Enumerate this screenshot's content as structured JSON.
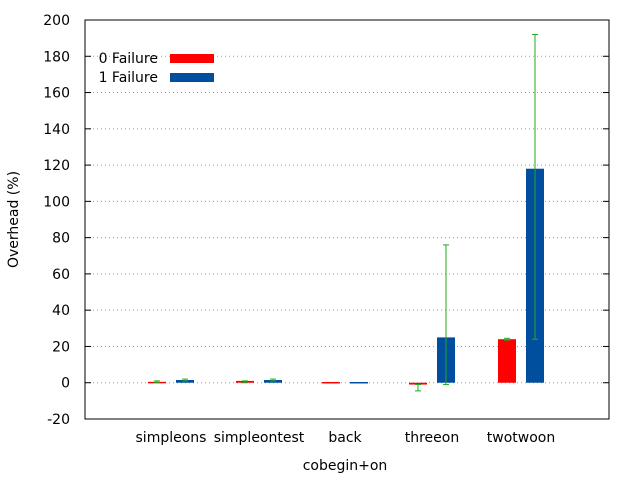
{
  "chart_data": {
    "type": "bar",
    "title": "",
    "xlabel": "cobegin+on",
    "ylabel": "Overhead (%)",
    "ylim": [
      -20,
      200
    ],
    "yticks": [
      -20,
      0,
      20,
      40,
      60,
      80,
      100,
      120,
      140,
      160,
      180,
      200
    ],
    "grid": true,
    "legend_position": "top-left",
    "error_bar_color": "#22aa22",
    "categories": [
      "simpleons",
      "simpleontest",
      "back",
      "threeon",
      "twotwoon"
    ],
    "series": [
      {
        "name": "0 Failure",
        "color": "#ff0000",
        "values": [
          0.5,
          1,
          -0.5,
          -1,
          24
        ],
        "err_low": [
          0,
          0,
          -0.5,
          -4.5,
          23.5
        ],
        "err_high": [
          1,
          1,
          -0.5,
          -1,
          24.5
        ]
      },
      {
        "name": "1 Failure",
        "color": "#004f9e",
        "values": [
          1.5,
          1.5,
          -0.5,
          25,
          118
        ],
        "err_low": [
          1,
          1,
          -0.5,
          -1,
          24
        ],
        "err_high": [
          2,
          2,
          -0.5,
          76,
          192
        ]
      }
    ]
  }
}
